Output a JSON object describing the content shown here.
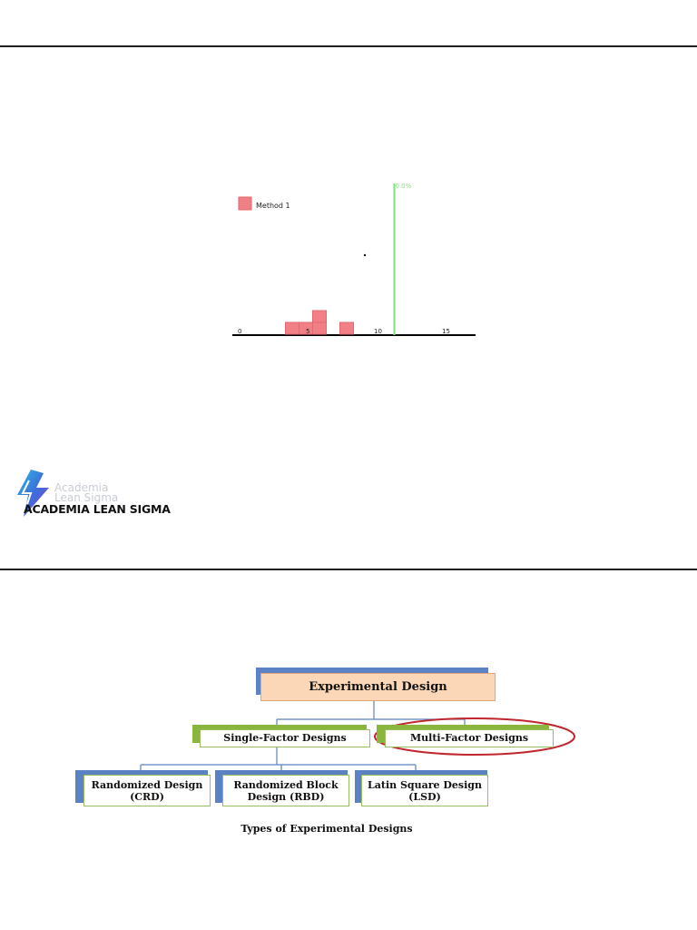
{
  "chart_data": {
    "type": "histogram",
    "title": "",
    "xlabel": "",
    "ylabel": "",
    "xlim": [
      -0.5,
      17
    ],
    "x_ticks": [
      "0",
      "5",
      "10",
      "15"
    ],
    "bins": [
      {
        "x0": 3.5,
        "x1": 4.5,
        "count": 1
      },
      {
        "x0": 4.5,
        "x1": 5.5,
        "count": 1
      },
      {
        "x0": 5.5,
        "x1": 6.5,
        "count": 2
      },
      {
        "x0": 7.5,
        "x1": 8.5,
        "count": 1
      }
    ],
    "bar_color": "#f07f86",
    "legend": {
      "label": "Method 1",
      "position": "top-left"
    },
    "reference_line": {
      "x": 11.5,
      "label": "0.0%",
      "color": "#7fe07f"
    },
    "grid": false
  },
  "logo": {
    "line1": "Academia",
    "line2": "Lean Sigma",
    "name": "ACADEMIA LEAN SIGMA"
  },
  "diagram": {
    "root": "Experimental Design",
    "level1": [
      "Single-Factor Designs",
      "Multi-Factor Designs"
    ],
    "level2": [
      [
        "Randomized Design",
        "(CRD)"
      ],
      [
        "Randomized Block",
        "Design (RBD)"
      ],
      [
        "Latin Square Design",
        "(LSD)"
      ]
    ],
    "caption": "Types of Experimental Designs",
    "highlight_color": "#c0262d"
  }
}
